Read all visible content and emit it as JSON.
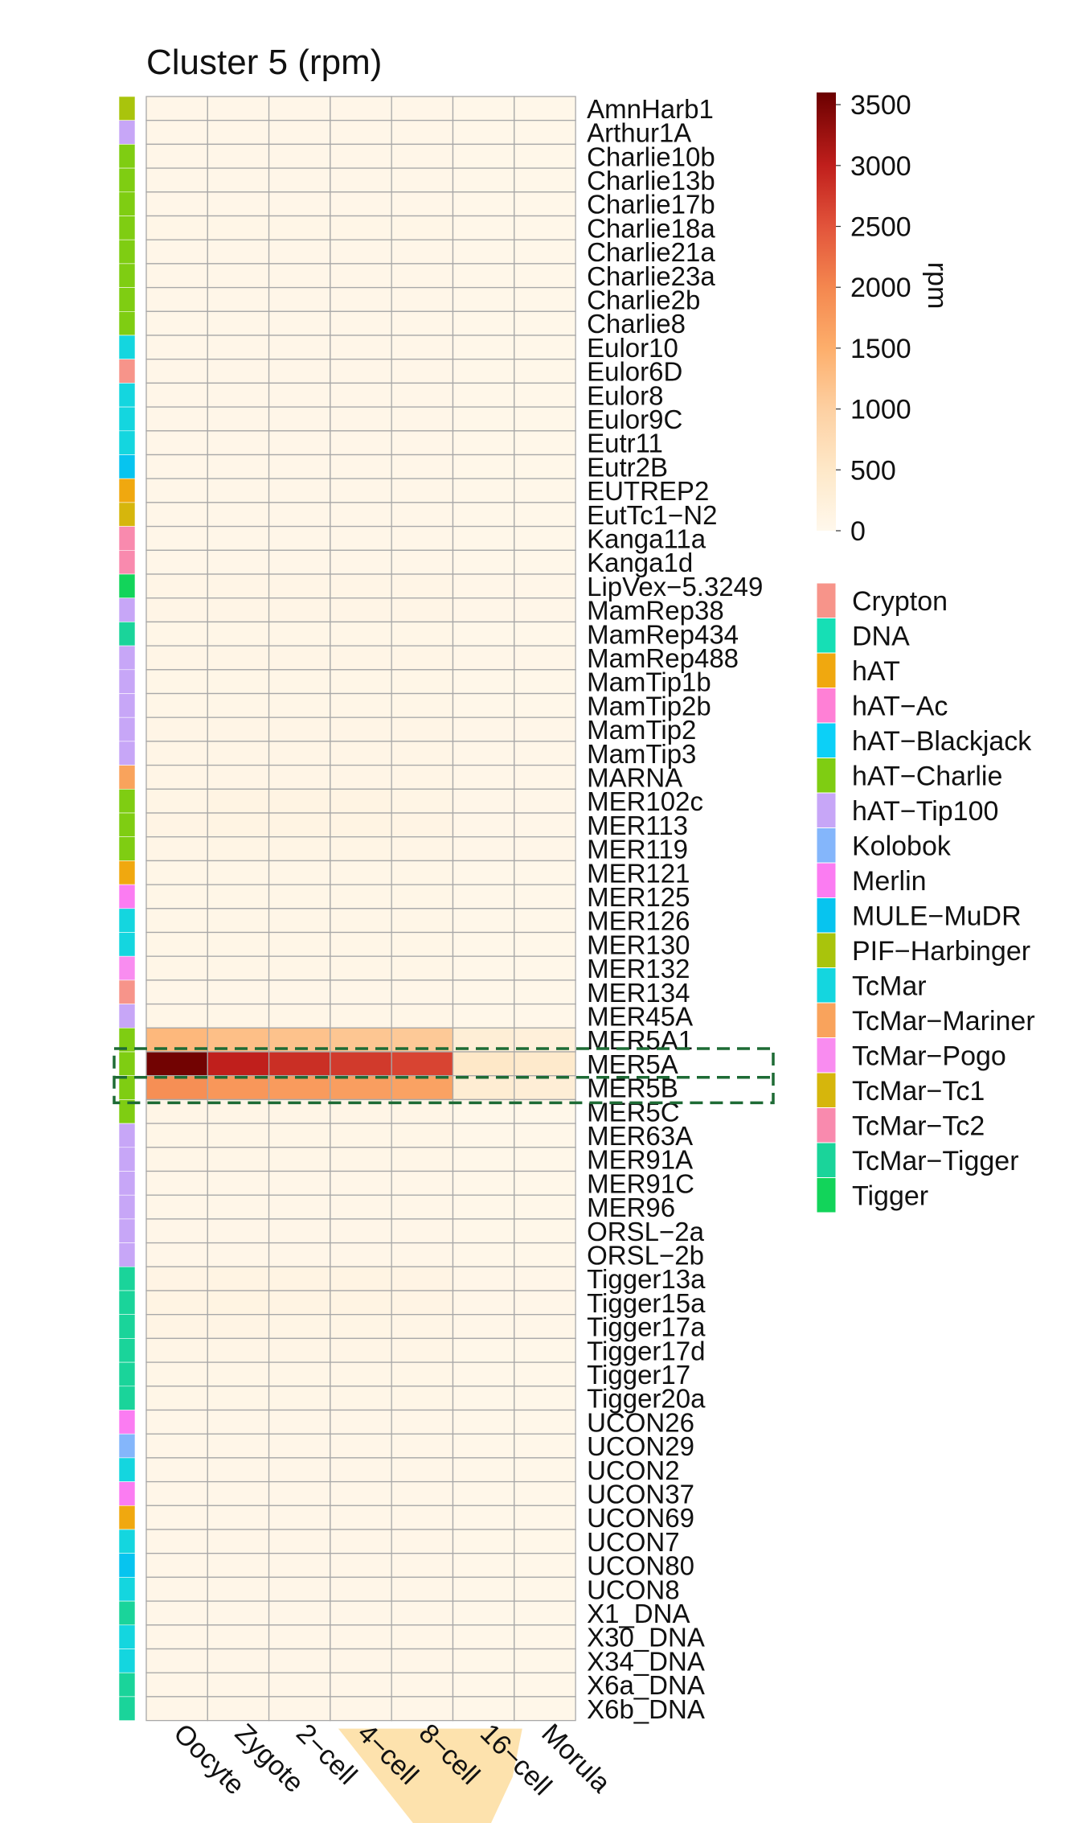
{
  "chart_data": {
    "type": "heatmap",
    "title": "Cluster 5 (rpm)",
    "columns": [
      "Oocyte",
      "Zygote",
      "2−cell",
      "4−cell",
      "8−cell",
      "16−cell",
      "Morula"
    ],
    "rows": [
      {
        "name": "AmnHarb1",
        "family": "PIF−Harbinger",
        "values": [
          60,
          60,
          60,
          60,
          60,
          40,
          40
        ]
      },
      {
        "name": "Arthur1A",
        "family": "hAT−Tip100",
        "values": [
          50,
          50,
          50,
          50,
          50,
          40,
          40
        ]
      },
      {
        "name": "Charlie10b",
        "family": "hAT−Charlie",
        "values": [
          60,
          60,
          60,
          60,
          60,
          40,
          40
        ]
      },
      {
        "name": "Charlie13b",
        "family": "hAT−Charlie",
        "values": [
          60,
          60,
          60,
          60,
          60,
          40,
          40
        ]
      },
      {
        "name": "Charlie17b",
        "family": "hAT−Charlie",
        "values": [
          60,
          60,
          60,
          60,
          60,
          40,
          40
        ]
      },
      {
        "name": "Charlie18a",
        "family": "hAT−Charlie",
        "values": [
          70,
          70,
          70,
          70,
          70,
          40,
          40
        ]
      },
      {
        "name": "Charlie21a",
        "family": "hAT−Charlie",
        "values": [
          60,
          60,
          60,
          60,
          60,
          40,
          40
        ]
      },
      {
        "name": "Charlie23a",
        "family": "hAT−Charlie",
        "values": [
          60,
          60,
          60,
          60,
          60,
          40,
          40
        ]
      },
      {
        "name": "Charlie2b",
        "family": "hAT−Charlie",
        "values": [
          60,
          60,
          60,
          60,
          60,
          40,
          40
        ]
      },
      {
        "name": "Charlie8",
        "family": "hAT−Charlie",
        "values": [
          60,
          60,
          60,
          60,
          60,
          40,
          40
        ]
      },
      {
        "name": "Eulor10",
        "family": "TcMar",
        "values": [
          60,
          60,
          60,
          60,
          60,
          40,
          40
        ]
      },
      {
        "name": "Eulor6D",
        "family": "Crypton",
        "values": [
          60,
          60,
          60,
          60,
          60,
          40,
          40
        ]
      },
      {
        "name": "Eulor8",
        "family": "TcMar",
        "values": [
          60,
          60,
          60,
          60,
          60,
          40,
          40
        ]
      },
      {
        "name": "Eulor9C",
        "family": "TcMar",
        "values": [
          60,
          60,
          60,
          60,
          60,
          40,
          40
        ]
      },
      {
        "name": "Eutr11",
        "family": "TcMar",
        "values": [
          60,
          60,
          60,
          60,
          60,
          40,
          40
        ]
      },
      {
        "name": "Eutr2B",
        "family": "MULE−MuDR",
        "values": [
          60,
          60,
          60,
          60,
          60,
          40,
          40
        ]
      },
      {
        "name": "EUTREP2",
        "family": "hAT",
        "values": [
          60,
          60,
          60,
          60,
          60,
          40,
          40
        ]
      },
      {
        "name": "EutTc1−N2",
        "family": "TcMar−Tc1",
        "values": [
          60,
          60,
          60,
          60,
          60,
          40,
          40
        ]
      },
      {
        "name": "Kanga11a",
        "family": "TcMar−Tc2",
        "values": [
          60,
          60,
          60,
          60,
          60,
          40,
          40
        ]
      },
      {
        "name": "Kanga1d",
        "family": "TcMar−Tc2",
        "values": [
          60,
          60,
          60,
          60,
          60,
          40,
          40
        ]
      },
      {
        "name": "LipVex−5.3249",
        "family": "Tigger",
        "values": [
          90,
          90,
          90,
          90,
          90,
          50,
          50
        ]
      },
      {
        "name": "MamRep38",
        "family": "hAT−Tip100",
        "values": [
          80,
          80,
          80,
          80,
          80,
          50,
          50
        ]
      },
      {
        "name": "MamRep434",
        "family": "TcMar−Tigger",
        "values": [
          70,
          70,
          70,
          70,
          70,
          40,
          40
        ]
      },
      {
        "name": "MamRep488",
        "family": "hAT−Tip100",
        "values": [
          80,
          80,
          80,
          80,
          80,
          50,
          50
        ]
      },
      {
        "name": "MamTip1b",
        "family": "hAT−Tip100",
        "values": [
          70,
          70,
          70,
          70,
          70,
          40,
          40
        ]
      },
      {
        "name": "MamTip2b",
        "family": "hAT−Tip100",
        "values": [
          70,
          70,
          70,
          70,
          70,
          40,
          40
        ]
      },
      {
        "name": "MamTip2",
        "family": "hAT−Tip100",
        "values": [
          80,
          80,
          80,
          80,
          80,
          50,
          50
        ]
      },
      {
        "name": "MamTip3",
        "family": "hAT−Tip100",
        "values": [
          80,
          80,
          80,
          80,
          80,
          50,
          50
        ]
      },
      {
        "name": "MARNA",
        "family": "TcMar−Mariner",
        "values": [
          90,
          90,
          90,
          90,
          90,
          50,
          50
        ]
      },
      {
        "name": "MER102c",
        "family": "hAT−Charlie",
        "values": [
          100,
          120,
          120,
          120,
          100,
          60,
          60
        ]
      },
      {
        "name": "MER113",
        "family": "hAT−Charlie",
        "values": [
          110,
          130,
          130,
          130,
          110,
          60,
          60
        ]
      },
      {
        "name": "MER119",
        "family": "hAT−Charlie",
        "values": [
          90,
          100,
          100,
          100,
          90,
          50,
          50
        ]
      },
      {
        "name": "MER121",
        "family": "hAT",
        "values": [
          70,
          70,
          70,
          70,
          70,
          40,
          40
        ]
      },
      {
        "name": "MER125",
        "family": "Merlin",
        "values": [
          70,
          70,
          70,
          70,
          70,
          40,
          40
        ]
      },
      {
        "name": "MER126",
        "family": "TcMar",
        "values": [
          70,
          70,
          70,
          70,
          70,
          40,
          40
        ]
      },
      {
        "name": "MER130",
        "family": "TcMar",
        "values": [
          70,
          70,
          70,
          70,
          70,
          40,
          40
        ]
      },
      {
        "name": "MER132",
        "family": "TcMar−Pogo",
        "values": [
          70,
          70,
          70,
          70,
          70,
          40,
          40
        ]
      },
      {
        "name": "MER134",
        "family": "Crypton",
        "values": [
          60,
          60,
          60,
          60,
          60,
          40,
          40
        ]
      },
      {
        "name": "MER45A",
        "family": "hAT−Tip100",
        "values": [
          70,
          70,
          70,
          70,
          70,
          40,
          40
        ]
      },
      {
        "name": "MER5A1",
        "family": "hAT−Charlie",
        "values": [
          1350,
          1250,
          1200,
          1150,
          1100,
          300,
          250
        ]
      },
      {
        "name": "MER5A",
        "family": "hAT−Charlie",
        "values": [
          3550,
          3000,
          2850,
          2750,
          2650,
          500,
          450
        ]
      },
      {
        "name": "MER5B",
        "family": "hAT−Charlie",
        "values": [
          1900,
          1800,
          1750,
          1700,
          1650,
          350,
          300
        ]
      },
      {
        "name": "MER5C",
        "family": "hAT−Charlie",
        "values": [
          80,
          80,
          80,
          80,
          80,
          40,
          40
        ]
      },
      {
        "name": "MER63A",
        "family": "hAT−Tip100",
        "values": [
          70,
          70,
          70,
          70,
          70,
          40,
          40
        ]
      },
      {
        "name": "MER91A",
        "family": "hAT−Tip100",
        "values": [
          70,
          70,
          70,
          70,
          70,
          40,
          40
        ]
      },
      {
        "name": "MER91C",
        "family": "hAT−Tip100",
        "values": [
          60,
          60,
          60,
          60,
          60,
          40,
          40
        ]
      },
      {
        "name": "MER96",
        "family": "hAT−Tip100",
        "values": [
          60,
          60,
          60,
          60,
          60,
          40,
          40
        ]
      },
      {
        "name": "ORSL−2a",
        "family": "hAT−Tip100",
        "values": [
          60,
          60,
          60,
          60,
          60,
          40,
          40
        ]
      },
      {
        "name": "ORSL−2b",
        "family": "hAT−Tip100",
        "values": [
          60,
          60,
          60,
          60,
          60,
          40,
          40
        ]
      },
      {
        "name": "Tigger13a",
        "family": "TcMar−Tigger",
        "values": [
          110,
          130,
          130,
          120,
          110,
          60,
          60
        ]
      },
      {
        "name": "Tigger15a",
        "family": "TcMar−Tigger",
        "values": [
          120,
          140,
          130,
          120,
          110,
          60,
          60
        ]
      },
      {
        "name": "Tigger17a",
        "family": "TcMar−Tigger",
        "values": [
          110,
          110,
          100,
          100,
          90,
          50,
          50
        ]
      },
      {
        "name": "Tigger17d",
        "family": "TcMar−Tigger",
        "values": [
          80,
          80,
          80,
          80,
          80,
          40,
          40
        ]
      },
      {
        "name": "Tigger17",
        "family": "TcMar−Tigger",
        "values": [
          70,
          70,
          70,
          70,
          70,
          40,
          40
        ]
      },
      {
        "name": "Tigger20a",
        "family": "TcMar−Tigger",
        "values": [
          70,
          70,
          70,
          70,
          70,
          40,
          40
        ]
      },
      {
        "name": "UCON26",
        "family": "Merlin",
        "values": [
          60,
          60,
          60,
          60,
          60,
          40,
          40
        ]
      },
      {
        "name": "UCON29",
        "family": "Kolobok",
        "values": [
          60,
          60,
          60,
          60,
          60,
          40,
          40
        ]
      },
      {
        "name": "UCON2",
        "family": "TcMar",
        "values": [
          60,
          60,
          60,
          60,
          60,
          40,
          40
        ]
      },
      {
        "name": "UCON37",
        "family": "Merlin",
        "values": [
          60,
          60,
          60,
          60,
          60,
          40,
          40
        ]
      },
      {
        "name": "UCON69",
        "family": "hAT",
        "values": [
          60,
          60,
          60,
          60,
          60,
          40,
          40
        ]
      },
      {
        "name": "UCON7",
        "family": "TcMar",
        "values": [
          60,
          60,
          60,
          60,
          60,
          40,
          40
        ]
      },
      {
        "name": "UCON80",
        "family": "MULE−MuDR",
        "values": [
          60,
          60,
          60,
          60,
          60,
          40,
          40
        ]
      },
      {
        "name": "UCON8",
        "family": "TcMar",
        "values": [
          60,
          60,
          60,
          60,
          60,
          40,
          40
        ]
      },
      {
        "name": "X1_DNA",
        "family": "TcMar−Tigger",
        "values": [
          60,
          60,
          60,
          60,
          60,
          40,
          40
        ]
      },
      {
        "name": "X30_DNA",
        "family": "TcMar",
        "values": [
          60,
          60,
          60,
          60,
          60,
          40,
          40
        ]
      },
      {
        "name": "X34_DNA",
        "family": "TcMar",
        "values": [
          60,
          60,
          60,
          60,
          60,
          40,
          40
        ]
      },
      {
        "name": "X6a_DNA",
        "family": "TcMar−Tigger",
        "values": [
          60,
          60,
          60,
          60,
          60,
          40,
          40
        ]
      },
      {
        "name": "X6b_DNA",
        "family": "TcMar−Tigger",
        "values": [
          60,
          60,
          60,
          60,
          60,
          40,
          40
        ]
      }
    ],
    "color_scale": {
      "label": "rpm",
      "range": [
        0,
        3600
      ],
      "ticks": [
        3500,
        3000,
        2500,
        2000,
        1500,
        1000,
        500,
        0
      ],
      "stops": [
        {
          "value": 0,
          "color": "#fff8ec"
        },
        {
          "value": 500,
          "color": "#fee8c8"
        },
        {
          "value": 1000,
          "color": "#fdd0a2"
        },
        {
          "value": 1500,
          "color": "#fdae6b"
        },
        {
          "value": 2000,
          "color": "#f4874f"
        },
        {
          "value": 2500,
          "color": "#e2543b"
        },
        {
          "value": 3000,
          "color": "#c01f1c"
        },
        {
          "value": 3600,
          "color": "#6b0000"
        }
      ]
    },
    "family_legend": [
      {
        "name": "Crypton",
        "color": "#f7948a"
      },
      {
        "name": "DNA",
        "color": "#16dfb5"
      },
      {
        "name": "hAT",
        "color": "#f0a80f"
      },
      {
        "name": "hAT−Ac",
        "color": "#ff80d6"
      },
      {
        "name": "hAT−Blackjack",
        "color": "#0cd0f7"
      },
      {
        "name": "hAT−Charlie",
        "color": "#7fcd12"
      },
      {
        "name": "hAT−Tip100",
        "color": "#c7a6f7"
      },
      {
        "name": "Kolobok",
        "color": "#84b6fb"
      },
      {
        "name": "Merlin",
        "color": "#fb7cf2"
      },
      {
        "name": "MULE−MuDR",
        "color": "#07c4ef"
      },
      {
        "name": "PIF−Harbinger",
        "color": "#a9c40c"
      },
      {
        "name": "TcMar",
        "color": "#14d6df"
      },
      {
        "name": "TcMar−Mariner",
        "color": "#f9a35c"
      },
      {
        "name": "TcMar−Pogo",
        "color": "#f98cf0"
      },
      {
        "name": "TcMar−Tc1",
        "color": "#d6b60c"
      },
      {
        "name": "TcMar−Tc2",
        "color": "#f98aae"
      },
      {
        "name": "TcMar−Tigger",
        "color": "#1ad49a"
      },
      {
        "name": "Tigger",
        "color": "#12d45a"
      }
    ],
    "highlighted_rows": [
      "MER5A",
      "MER5B"
    ],
    "highlighted_columns": [
      "4−cell",
      "8−cell",
      "16−cell"
    ],
    "colors": {
      "grid": "#a8a8a8",
      "highlight_box": "#1e6b35",
      "column_band": "#fde2ad"
    }
  }
}
